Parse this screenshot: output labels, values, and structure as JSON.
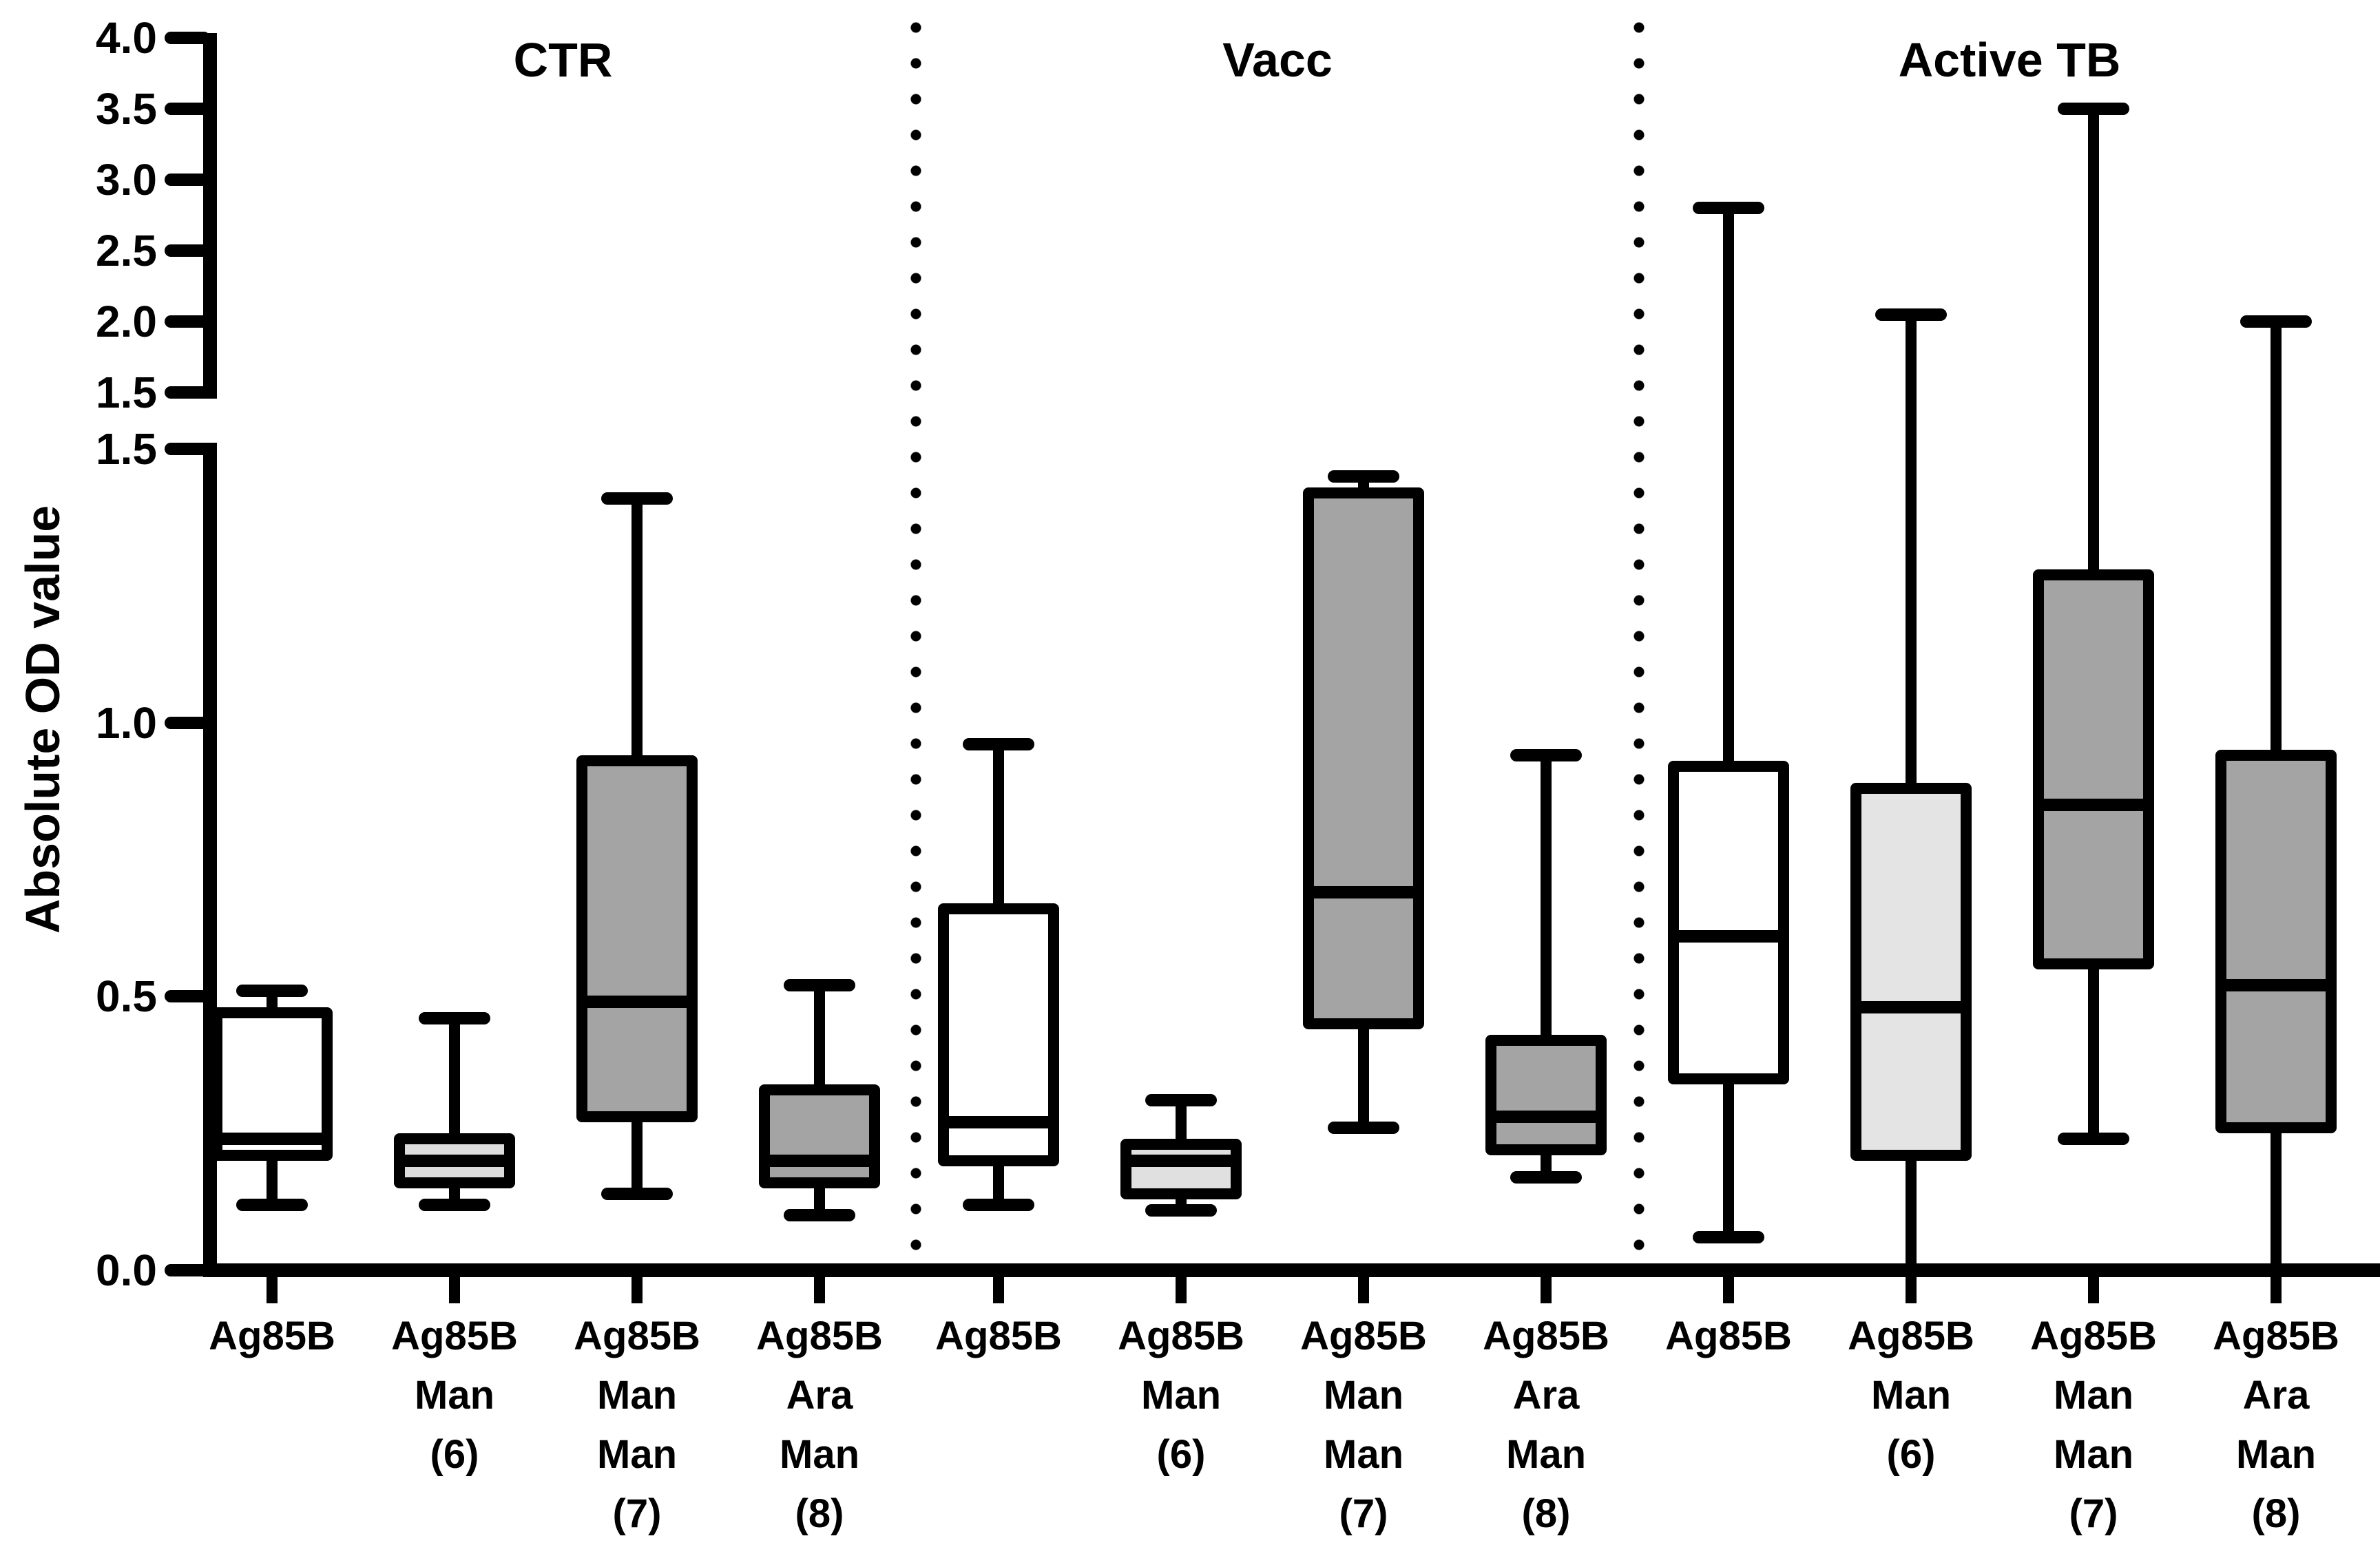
{
  "chart_data": {
    "type": "boxplot",
    "title": "",
    "ylabel": "Absolute OD value",
    "xlabel": "",
    "grid": false,
    "legend": "none",
    "axis_break": {
      "present": true,
      "lower_segment_range": [
        0.0,
        1.5
      ],
      "upper_segment_range": [
        1.5,
        4.0
      ]
    },
    "yticks_upper": [
      "4.0",
      "3.5",
      "3.0",
      "2.5",
      "2.0",
      "1.5"
    ],
    "yticks_upper_values": [
      4.0,
      3.5,
      3.0,
      2.5,
      2.0,
      1.5
    ],
    "yticks_lower": [
      "1.5",
      "1.0",
      "0.5",
      "0.0"
    ],
    "yticks_lower_values": [
      1.5,
      1.0,
      0.5,
      0.0
    ],
    "groups": [
      {
        "label": "CTR",
        "boxes": [
          {
            "label_lines": [
              "Ag85B"
            ],
            "fill": "#ffffff",
            "whisker_min": 0.12,
            "q1": 0.2,
            "median": 0.24,
            "q3": 0.48,
            "whisker_max": 0.51
          },
          {
            "label_lines": [
              "Ag85B",
              "Man",
              "(6)"
            ],
            "fill": "#dcdcdc",
            "whisker_min": 0.12,
            "q1": 0.15,
            "median": 0.2,
            "q3": 0.25,
            "whisker_max": 0.46
          },
          {
            "label_lines": [
              "Ag85B",
              "Man",
              "Man",
              "(7)"
            ],
            "fill": "#a4a4a4",
            "whisker_min": 0.14,
            "q1": 0.27,
            "median": 0.49,
            "q3": 0.94,
            "whisker_max": 1.41
          },
          {
            "label_lines": [
              "Ag85B",
              "Ara",
              "Man",
              "(8)"
            ],
            "fill": "#a4a4a4",
            "whisker_min": 0.1,
            "q1": 0.15,
            "median": 0.2,
            "q3": 0.34,
            "whisker_max": 0.52
          }
        ]
      },
      {
        "label": "Vacc",
        "boxes": [
          {
            "label_lines": [
              "Ag85B"
            ],
            "fill": "#ffffff",
            "whisker_min": 0.12,
            "q1": 0.19,
            "median": 0.27,
            "q3": 0.67,
            "whisker_max": 0.96
          },
          {
            "label_lines": [
              "Ag85B",
              "Man",
              "(6)"
            ],
            "fill": "#e0e0e0",
            "whisker_min": 0.11,
            "q1": 0.13,
            "median": 0.2,
            "q3": 0.24,
            "whisker_max": 0.31
          },
          {
            "label_lines": [
              "Ag85B",
              "Man",
              "Man",
              "(7)"
            ],
            "fill": "#a4a4a4",
            "whisker_min": 0.26,
            "q1": 0.44,
            "median": 0.69,
            "q3": 1.43,
            "whisker_max": 1.45
          },
          {
            "label_lines": [
              "Ag85B",
              "Ara",
              "Man",
              "(8)"
            ],
            "fill": "#a4a4a4",
            "whisker_min": 0.17,
            "q1": 0.21,
            "median": 0.28,
            "q3": 0.43,
            "whisker_max": 0.94
          }
        ]
      },
      {
        "label": "Active TB",
        "boxes": [
          {
            "label_lines": [
              "Ag85B"
            ],
            "fill": "#ffffff",
            "whisker_min": 0.06,
            "q1": 0.34,
            "median": 0.61,
            "q3": 0.93,
            "whisker_max": 2.8
          },
          {
            "label_lines": [
              "Ag85B",
              "Man",
              "(6)"
            ],
            "fill": "#e4e4e4",
            "whisker_min": 0.0,
            "q1": 0.2,
            "median": 0.48,
            "q3": 0.89,
            "whisker_max": 2.05
          },
          {
            "label_lines": [
              "Ag85B",
              "Man",
              "Man",
              "(7)"
            ],
            "fill": "#a4a4a4",
            "whisker_min": 0.24,
            "q1": 0.55,
            "median": 0.85,
            "q3": 1.28,
            "whisker_max": 3.5
          },
          {
            "label_lines": [
              "Ag85B",
              "Ara",
              "Man",
              "(8)"
            ],
            "fill": "#a4a4a4",
            "whisker_min": 0.0,
            "q1": 0.25,
            "median": 0.52,
            "q3": 0.95,
            "whisker_max": 2.0
          }
        ]
      }
    ],
    "colors": {
      "stroke": "#000000",
      "background": "#ffffff",
      "fill_white": "#ffffff",
      "fill_light_gray": "#e0e0e0",
      "fill_dark_gray": "#a4a4a4"
    }
  }
}
